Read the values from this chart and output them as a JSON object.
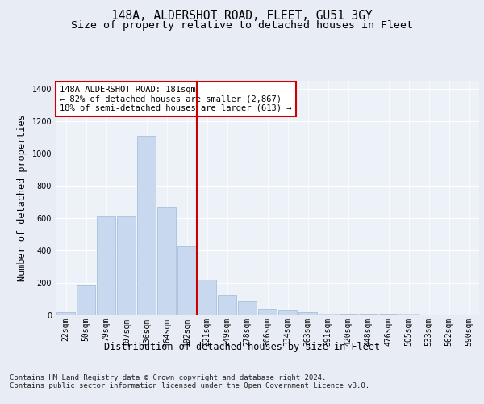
{
  "title": "148A, ALDERSHOT ROAD, FLEET, GU51 3GY",
  "subtitle": "Size of property relative to detached houses in Fleet",
  "xlabel": "Distribution of detached houses by size in Fleet",
  "ylabel": "Number of detached properties",
  "categories": [
    "22sqm",
    "50sqm",
    "79sqm",
    "107sqm",
    "136sqm",
    "164sqm",
    "192sqm",
    "221sqm",
    "249sqm",
    "278sqm",
    "306sqm",
    "334sqm",
    "363sqm",
    "391sqm",
    "420sqm",
    "448sqm",
    "476sqm",
    "505sqm",
    "533sqm",
    "562sqm",
    "590sqm"
  ],
  "values": [
    20,
    185,
    615,
    615,
    1110,
    670,
    425,
    220,
    125,
    85,
    35,
    30,
    18,
    10,
    5,
    5,
    5,
    12,
    0,
    0,
    0
  ],
  "bar_color": "#c8d8ee",
  "bar_edge_color": "#a0b8d8",
  "vline_color": "#cc0000",
  "vline_index": 6.5,
  "annotation_text": "148A ALDERSHOT ROAD: 181sqm\n← 82% of detached houses are smaller (2,867)\n18% of semi-detached houses are larger (613) →",
  "annotation_box_color": "#cc0000",
  "ylim": [
    0,
    1450
  ],
  "yticks": [
    0,
    200,
    400,
    600,
    800,
    1000,
    1200,
    1400
  ],
  "footer": "Contains HM Land Registry data © Crown copyright and database right 2024.\nContains public sector information licensed under the Open Government Licence v3.0.",
  "bg_color": "#e8edf5",
  "plot_bg_color": "#edf1f8",
  "title_fontsize": 10.5,
  "subtitle_fontsize": 9.5,
  "axis_label_fontsize": 8.5,
  "tick_fontsize": 7,
  "footer_fontsize": 6.5,
  "annotation_fontsize": 7.5
}
